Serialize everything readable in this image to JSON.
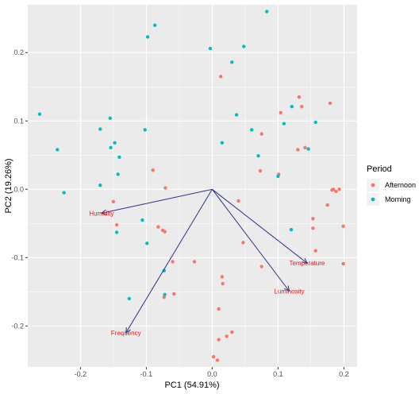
{
  "chart_data": {
    "type": "scatter",
    "subtype": "pca-biplot",
    "xlabel": "PC1 (54.91%)",
    "ylabel": "PC2 (19.26%)",
    "xlim": [
      -0.28,
      0.22
    ],
    "ylim": [
      -0.26,
      0.27
    ],
    "x_ticks": [
      -0.2,
      -0.1,
      0.0,
      0.1,
      0.2
    ],
    "x_tick_labels": [
      "-0.2",
      "-0.1",
      "0.0",
      "0.1",
      "0.2"
    ],
    "y_ticks": [
      -0.2,
      -0.1,
      0.0,
      0.1,
      0.2
    ],
    "y_tick_labels": [
      "-0.2",
      "-0.1",
      "0.0",
      "0.1",
      "0.2"
    ],
    "grid": true,
    "panel_background": "#ebebeb",
    "grid_color": "#ffffff",
    "legend": {
      "title": "Period",
      "position": "right",
      "entries": [
        "Afternoon",
        "Morning"
      ]
    },
    "series": [
      {
        "name": "Afternoon",
        "color": "#f8766d",
        "points": [
          [
            0.013,
            0.165
          ],
          [
            0.132,
            0.135
          ],
          [
            0.136,
            0.121
          ],
          [
            0.104,
            0.112
          ],
          [
            0.179,
            0.126
          ],
          [
            0.141,
            0.061
          ],
          [
            0.13,
            0.058
          ],
          [
            0.075,
            0.081
          ],
          [
            0.073,
            0.027
          ],
          [
            0.101,
            0.022
          ],
          [
            0.184,
            0.0
          ],
          [
            0.188,
            -0.003
          ],
          [
            0.193,
            0.0
          ],
          [
            0.182,
            -0.001
          ],
          [
            0.175,
            -0.023
          ],
          [
            0.153,
            -0.043
          ],
          [
            0.199,
            -0.054
          ],
          [
            0.153,
            -0.057
          ],
          [
            0.157,
            -0.09
          ],
          [
            0.199,
            -0.109
          ],
          [
            0.04,
            -0.017
          ],
          [
            0.047,
            -0.078
          ],
          [
            0.075,
            -0.113
          ],
          [
            0.015,
            -0.128
          ],
          [
            0.016,
            -0.138
          ],
          [
            0.01,
            -0.175
          ],
          [
            0.03,
            -0.209
          ],
          [
            0.022,
            -0.215
          ],
          [
            0.01,
            -0.22
          ],
          [
            0.002,
            -0.245
          ],
          [
            0.008,
            -0.25
          ],
          [
            -0.027,
            -0.106
          ],
          [
            -0.06,
            -0.106
          ],
          [
            -0.072,
            -0.062
          ],
          [
            -0.075,
            -0.06
          ],
          [
            -0.082,
            -0.055
          ],
          [
            -0.058,
            -0.153
          ],
          [
            -0.073,
            -0.158
          ],
          [
            -0.15,
            -0.018
          ],
          [
            -0.145,
            -0.052
          ],
          [
            -0.071,
            0.002
          ],
          [
            -0.09,
            0.028
          ]
        ]
      },
      {
        "name": "Morning",
        "color": "#00bfc4",
        "points": [
          [
            0.083,
            0.26
          ],
          [
            -0.087,
            0.24
          ],
          [
            -0.098,
            0.223
          ],
          [
            -0.003,
            0.206
          ],
          [
            0.048,
            0.209
          ],
          [
            0.03,
            0.186
          ],
          [
            0.121,
            0.121
          ],
          [
            0.037,
            0.109
          ],
          [
            0.109,
            0.096
          ],
          [
            0.157,
            0.098
          ],
          [
            0.06,
            0.087
          ],
          [
            0.146,
            0.059
          ],
          [
            0.015,
            0.068
          ],
          [
            0.07,
            0.049
          ],
          [
            0.1,
            0.019
          ],
          [
            -0.262,
            0.11
          ],
          [
            -0.235,
            0.058
          ],
          [
            -0.225,
            -0.005
          ],
          [
            -0.17,
            0.088
          ],
          [
            -0.155,
            0.104
          ],
          [
            -0.102,
            0.087
          ],
          [
            -0.148,
            0.068
          ],
          [
            -0.154,
            0.061
          ],
          [
            -0.141,
            0.047
          ],
          [
            -0.143,
            0.022
          ],
          [
            -0.17,
            0.006
          ],
          [
            -0.106,
            -0.045
          ],
          [
            -0.145,
            -0.063
          ],
          [
            -0.099,
            -0.079
          ],
          [
            -0.073,
            -0.119
          ],
          [
            -0.126,
            -0.16
          ],
          [
            -0.072,
            -0.154
          ],
          [
            0.12,
            -0.059
          ]
        ]
      }
    ],
    "loadings": {
      "color": "#2d2d8a",
      "label_color": "#e41a1c",
      "vectors": [
        {
          "name": "Humidity",
          "x": -0.168,
          "y": -0.035
        },
        {
          "name": "Temperature",
          "x": 0.144,
          "y": -0.108
        },
        {
          "name": "Luminosity",
          "x": 0.117,
          "y": -0.149
        },
        {
          "name": "Frequency",
          "x": -0.131,
          "y": -0.21
        }
      ]
    }
  }
}
